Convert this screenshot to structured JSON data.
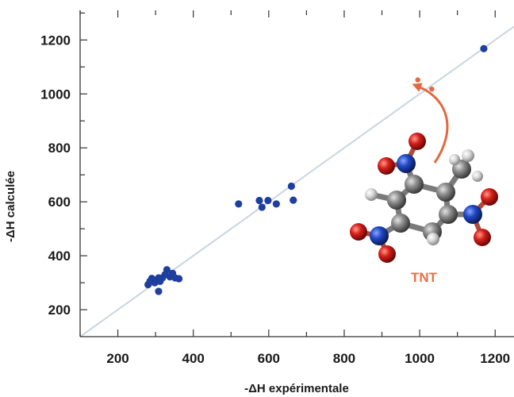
{
  "chart_data": {
    "type": "scatter",
    "xlabel": "-ΔH expérimentale",
    "ylabel": "-ΔH calculée",
    "xlim": [
      100,
      1250
    ],
    "ylim": [
      100,
      1310
    ],
    "x_ticks": [
      200,
      400,
      600,
      800,
      1000,
      1200
    ],
    "y_ticks": [
      200,
      400,
      600,
      800,
      1000,
      1200
    ],
    "grid": false,
    "reference_line": "y = x",
    "colors": {
      "points": "#1f3f9e",
      "highlight": "#e06a42",
      "diagonal": "#c8d6de",
      "axis": "#333333"
    },
    "series": [
      {
        "points": [
          [
            280,
            293
          ],
          [
            285,
            305
          ],
          [
            292,
            312
          ],
          [
            298,
            300
          ],
          [
            305,
            310
          ],
          [
            308,
            318
          ],
          [
            312,
            305
          ],
          [
            318,
            318
          ],
          [
            325,
            330
          ],
          [
            330,
            348
          ],
          [
            338,
            322
          ],
          [
            345,
            335
          ],
          [
            352,
            318
          ],
          [
            362,
            315
          ],
          [
            308,
            268
          ],
          [
            290,
            316
          ],
          [
            520,
            592
          ],
          [
            575,
            605
          ],
          [
            582,
            580
          ],
          [
            598,
            605
          ],
          [
            620,
            592
          ],
          [
            660,
            658
          ],
          [
            665,
            606
          ],
          [
            1170,
            1168
          ]
        ]
      }
    ],
    "highlighted_points": [
      [
        995,
        1052
      ],
      [
        1032,
        1018
      ]
    ],
    "annotations": [
      {
        "text": "TNT"
      }
    ]
  }
}
